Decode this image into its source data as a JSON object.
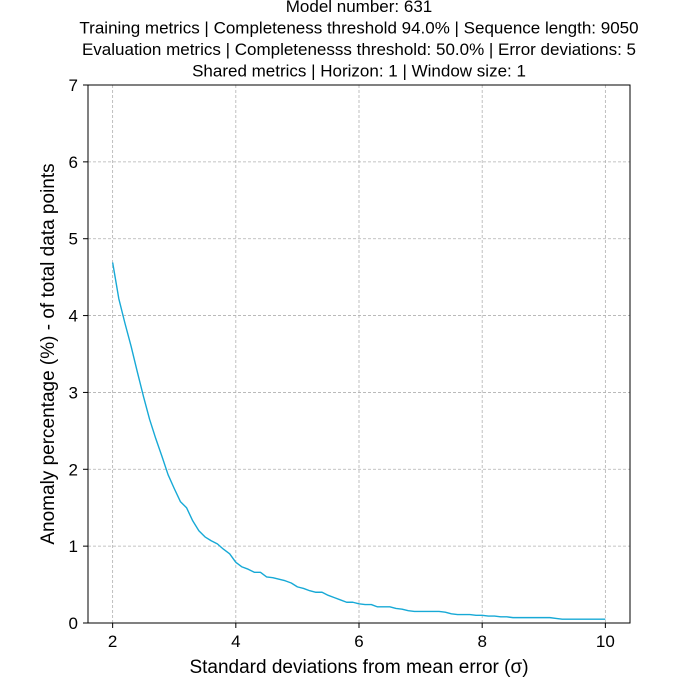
{
  "chart_data": {
    "type": "line",
    "title_lines": [
      "Model number: 631",
      "Training metrics | Completeness threshold 94.0% | Sequence length: 9050",
      "Evaluation metrics | Completenesss threshold: 50.0% | Error deviations: 5",
      "Shared metrics | Horizon: 1 | Window size: 1"
    ],
    "xlabel": "Standard deviations from mean error (σ)",
    "ylabel": "Anomaly percentage (%) - of total data points",
    "xlim": [
      1.6,
      10.4
    ],
    "ylim": [
      0,
      7
    ],
    "xticks": [
      2,
      4,
      6,
      8,
      10
    ],
    "yticks": [
      0,
      1,
      2,
      3,
      4,
      5,
      6,
      7
    ],
    "grid": true,
    "series": [
      {
        "color": "#17a9d6",
        "x": [
          2.0,
          2.1,
          2.2,
          2.3,
          2.4,
          2.5,
          2.6,
          2.7,
          2.8,
          2.9,
          3.0,
          3.1,
          3.2,
          3.3,
          3.4,
          3.5,
          3.6,
          3.7,
          3.8,
          3.9,
          4.0,
          4.1,
          4.2,
          4.3,
          4.4,
          4.5,
          4.6,
          4.7,
          4.8,
          4.9,
          5.0,
          5.1,
          5.2,
          5.3,
          5.4,
          5.5,
          5.6,
          5.7,
          5.8,
          5.9,
          6.0,
          6.1,
          6.2,
          6.3,
          6.4,
          6.5,
          6.6,
          6.7,
          6.8,
          6.9,
          7.0,
          7.1,
          7.2,
          7.3,
          7.4,
          7.5,
          7.6,
          7.7,
          7.8,
          7.9,
          8.0,
          8.1,
          8.2,
          8.3,
          8.4,
          8.5,
          8.6,
          8.7,
          8.8,
          8.9,
          9.0,
          9.1,
          9.2,
          9.3,
          9.4,
          9.5,
          9.6,
          9.7,
          9.8,
          9.9,
          10.0
        ],
        "y": [
          4.69,
          4.22,
          3.9,
          3.6,
          3.27,
          2.95,
          2.65,
          2.4,
          2.17,
          1.93,
          1.75,
          1.58,
          1.5,
          1.33,
          1.2,
          1.12,
          1.07,
          1.03,
          0.96,
          0.9,
          0.79,
          0.73,
          0.7,
          0.66,
          0.66,
          0.6,
          0.59,
          0.57,
          0.55,
          0.52,
          0.47,
          0.45,
          0.42,
          0.4,
          0.4,
          0.36,
          0.33,
          0.3,
          0.27,
          0.27,
          0.25,
          0.24,
          0.24,
          0.21,
          0.21,
          0.21,
          0.19,
          0.18,
          0.16,
          0.15,
          0.15,
          0.15,
          0.15,
          0.15,
          0.14,
          0.12,
          0.11,
          0.11,
          0.11,
          0.1,
          0.1,
          0.09,
          0.09,
          0.08,
          0.08,
          0.07,
          0.07,
          0.07,
          0.07,
          0.07,
          0.07,
          0.07,
          0.06,
          0.05,
          0.05,
          0.05,
          0.05,
          0.05,
          0.05,
          0.05,
          0.05
        ]
      }
    ]
  }
}
